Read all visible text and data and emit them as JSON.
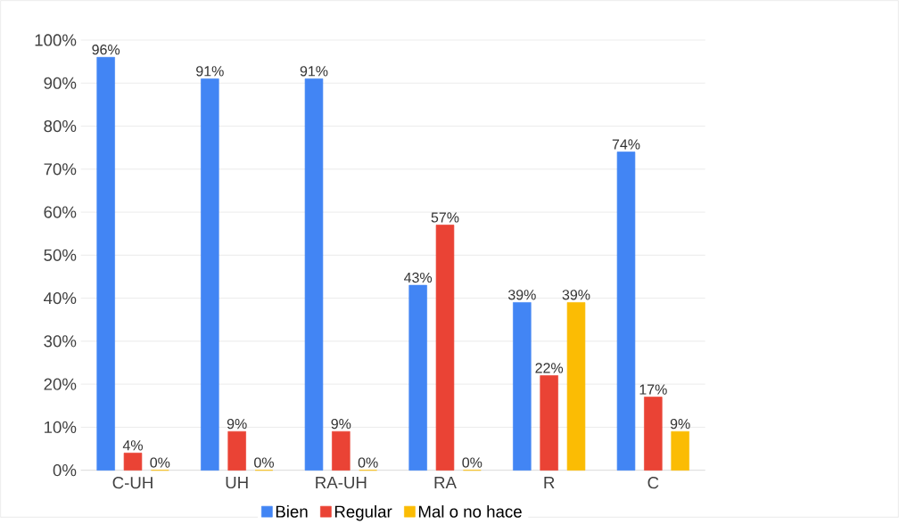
{
  "chart_data": {
    "type": "bar",
    "categories": [
      "C-UH",
      "UH",
      "RA-UH",
      "RA",
      "R",
      "C"
    ],
    "series": [
      {
        "name": "Bien",
        "color": "#4285f4",
        "values": [
          96,
          91,
          91,
          43,
          39,
          74
        ],
        "value_labels": [
          "96%",
          "91%",
          "91%",
          "43%",
          "39%",
          "74%"
        ]
      },
      {
        "name": "Regular",
        "color": "#ea4335",
        "values": [
          4,
          9,
          9,
          57,
          22,
          17
        ],
        "value_labels": [
          "4%",
          "9%",
          "9%",
          "57%",
          "22%",
          "17%"
        ]
      },
      {
        "name": "Mal o no hace",
        "color": "#fbbc04",
        "values": [
          0,
          0,
          0,
          0,
          39,
          9
        ],
        "value_labels": [
          "0%",
          "0%",
          "0%",
          "0%",
          "39%",
          "9%"
        ]
      }
    ],
    "ylim": [
      0,
      100
    ],
    "yticks": [
      {
        "value": 0,
        "label": "0%"
      },
      {
        "value": 10,
        "label": "10%"
      },
      {
        "value": 20,
        "label": "20%"
      },
      {
        "value": 30,
        "label": "30%"
      },
      {
        "value": 40,
        "label": "40%"
      },
      {
        "value": 50,
        "label": "50%"
      },
      {
        "value": 60,
        "label": "60%"
      },
      {
        "value": 70,
        "label": "70%"
      },
      {
        "value": 80,
        "label": "80%"
      },
      {
        "value": 90,
        "label": "90%"
      },
      {
        "value": 100,
        "label": "100%"
      }
    ],
    "grid": "y",
    "legend": "bottom"
  }
}
